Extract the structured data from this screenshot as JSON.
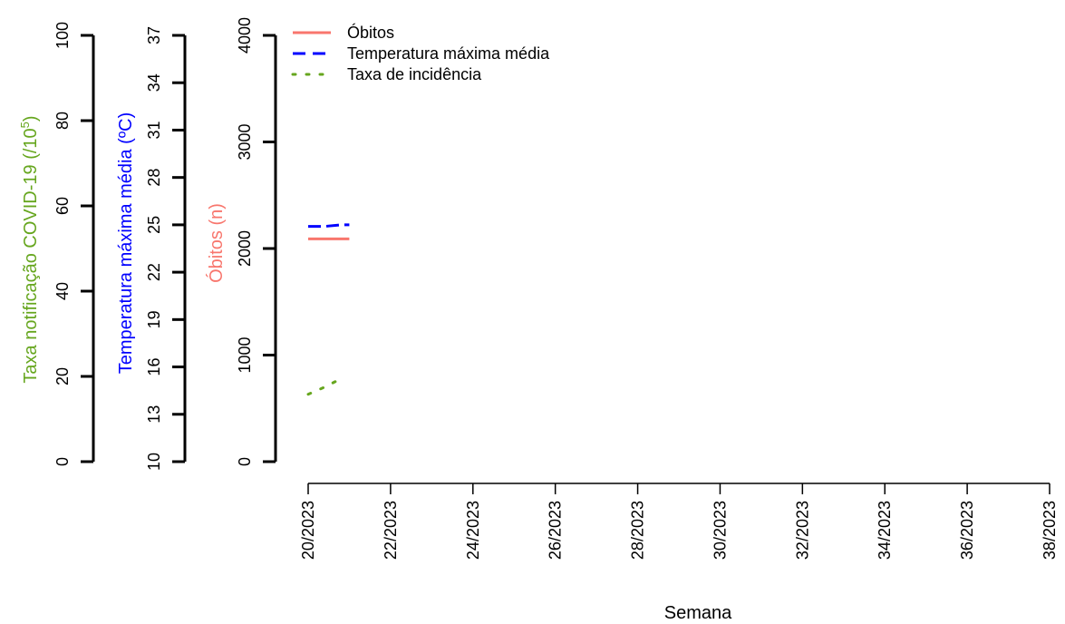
{
  "chart_data": {
    "type": "line",
    "xlabel": "Semana",
    "x_ticks": [
      "20/2023",
      "22/2023",
      "24/2023",
      "26/2023",
      "28/2023",
      "30/2023",
      "32/2023",
      "34/2023",
      "36/2023",
      "38/2023"
    ],
    "x_range": [
      20,
      38
    ],
    "axes": {
      "incidence": {
        "label": "Taxa notificação COVID-19 (/10",
        "label_sup": "5",
        "label_end": ")",
        "range": [
          0,
          100
        ],
        "ticks": [
          "0",
          "20",
          "40",
          "60",
          "80",
          "100"
        ],
        "color": "#66a61e"
      },
      "temperature": {
        "label": "Temperatura máxima média (ºC)",
        "range": [
          10,
          37
        ],
        "ticks": [
          "10",
          "13",
          "16",
          "19",
          "22",
          "25",
          "28",
          "31",
          "34",
          "37"
        ],
        "color": "#0000ff"
      },
      "deaths": {
        "label": "Óbitos (n)",
        "range": [
          0,
          4000
        ],
        "ticks": [
          "0",
          "1000",
          "2000",
          "3000",
          "4000"
        ],
        "color": "#f8766d"
      }
    },
    "series": [
      {
        "name": "Óbitos",
        "axis": "deaths",
        "color": "#f8766d",
        "dash": "solid",
        "points": [
          [
            20,
            2090
          ],
          [
            20.4,
            2090
          ],
          [
            20.8,
            2090
          ],
          [
            21,
            2090
          ]
        ]
      },
      {
        "name": "Temperatura máxima média",
        "axis": "temperature",
        "color": "#0000ff",
        "dash": "dashed",
        "points": [
          [
            20,
            24.9
          ],
          [
            20.4,
            24.9
          ],
          [
            20.8,
            25.0
          ],
          [
            21,
            25.0
          ]
        ]
      },
      {
        "name": "Taxa de incidência",
        "axis": "incidence",
        "color": "#66a61e",
        "dash": "dotted",
        "points": [
          [
            20,
            15.8
          ],
          [
            20.4,
            17.5
          ],
          [
            20.8,
            19.5
          ]
        ]
      }
    ],
    "legend_position": "top-left"
  }
}
